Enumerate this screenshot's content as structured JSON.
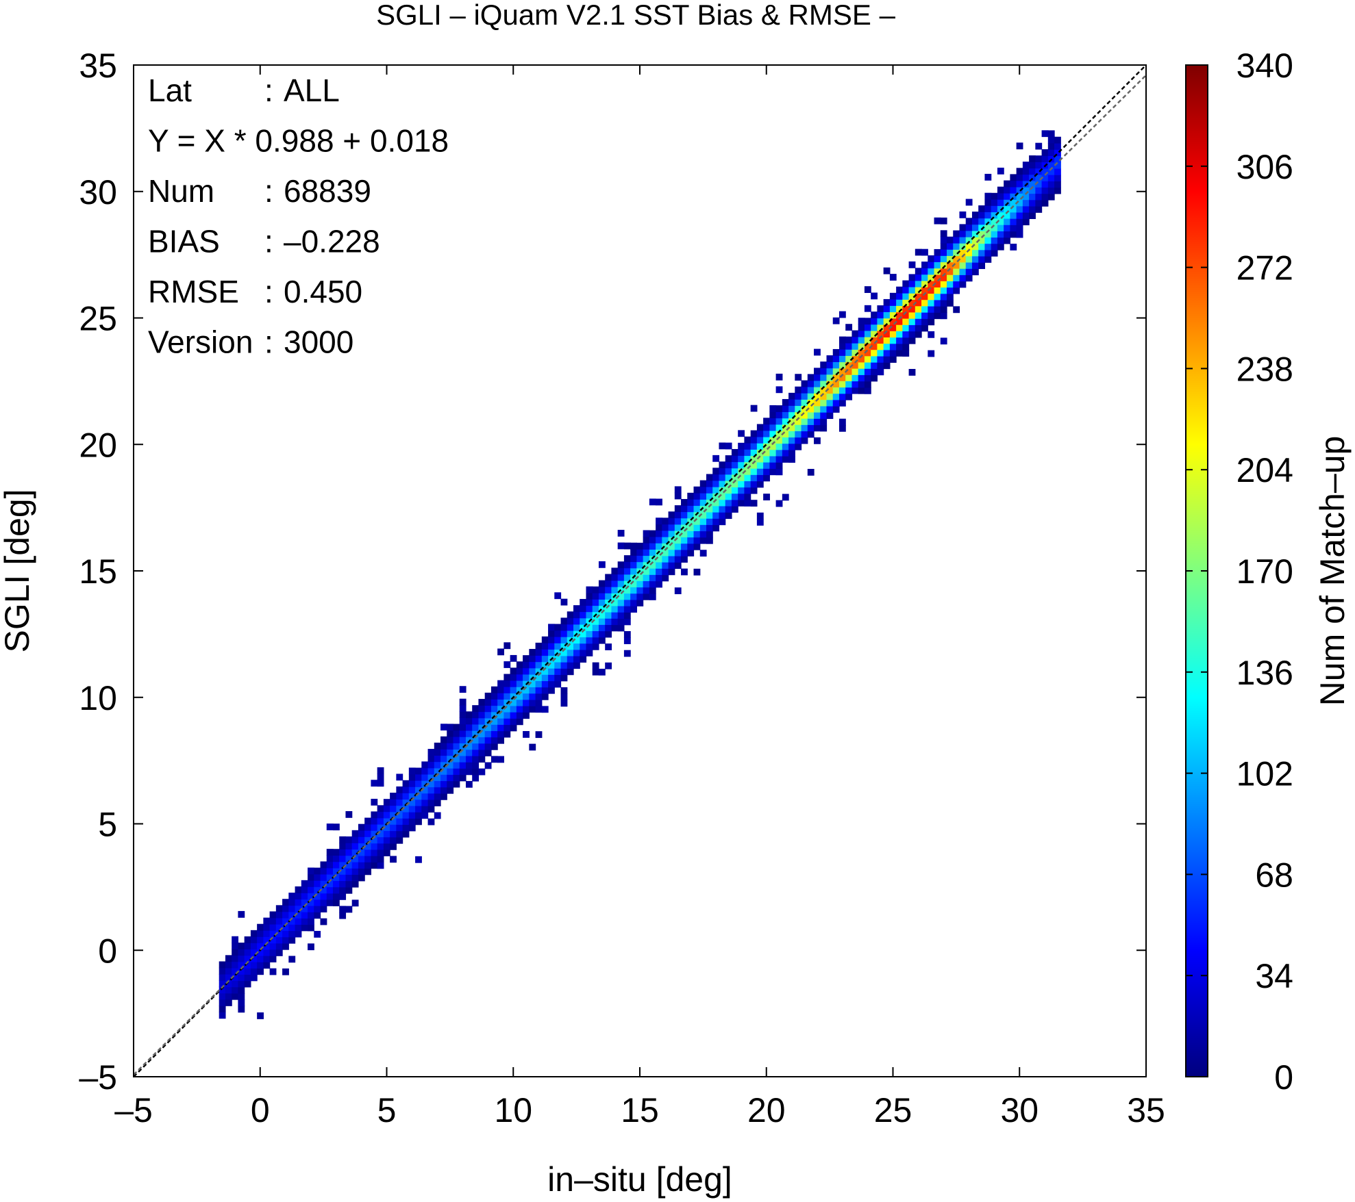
{
  "chart_data": {
    "type": "heatmap",
    "title": "SGLI – iQuam V2.1 SST Bias & RMSE  –",
    "xlabel": "in–situ [deg]",
    "ylabel": "SGLI [deg]",
    "xlim": [
      -5,
      35
    ],
    "ylim": [
      -5,
      35
    ],
    "x_ticks": [
      "–5",
      "0",
      "5",
      "10",
      "15",
      "20",
      "25",
      "30",
      "35"
    ],
    "y_ticks": [
      "–5",
      "0",
      "5",
      "10",
      "15",
      "20",
      "25",
      "30",
      "35"
    ],
    "grid": false,
    "colorbar": {
      "label": "Num of Match–up",
      "min": 0,
      "max": 340,
      "ticks": [
        "0",
        "34",
        "68",
        "102",
        "136",
        "170",
        "204",
        "238",
        "272",
        "306",
        "340"
      ]
    },
    "reference_lines": [
      {
        "name": "1:1",
        "slope": 1,
        "intercept": 0,
        "style": "dashed",
        "color": "#000000"
      },
      {
        "name": "regression",
        "slope": 0.988,
        "intercept": 0.018,
        "style": "dashed",
        "color": "#666666"
      }
    ],
    "stats": [
      {
        "key": "Lat",
        "sep": ":",
        "value": "ALL"
      },
      {
        "key": "Y = X * 0.988 + 0.018",
        "sep": "",
        "value": ""
      },
      {
        "key": "Num",
        "sep": ":",
        "value": "68839"
      },
      {
        "key": "BIAS",
        "sep": ":",
        "value": "–0.228"
      },
      {
        "key": "RMSE",
        "sep": ":",
        "value": "0.450"
      },
      {
        "key": "Version",
        "sep": ":",
        "value": "3000"
      }
    ],
    "density_profile": [
      {
        "x": -1.5,
        "peak": 30
      },
      {
        "x": 0,
        "peak": 45
      },
      {
        "x": 3,
        "peak": 60
      },
      {
        "x": 6,
        "peak": 75
      },
      {
        "x": 9,
        "peak": 95
      },
      {
        "x": 12,
        "peak": 125
      },
      {
        "x": 15,
        "peak": 150
      },
      {
        "x": 18,
        "peak": 160
      },
      {
        "x": 21,
        "peak": 200
      },
      {
        "x": 23,
        "peak": 260
      },
      {
        "x": 25,
        "peak": 300
      },
      {
        "x": 27,
        "peak": 290
      },
      {
        "x": 29,
        "peak": 150
      },
      {
        "x": 31,
        "peak": 60
      }
    ],
    "x_range_data": [
      -1.5,
      31.5
    ],
    "bias": -0.228,
    "rmse": 0.45
  },
  "colors": {
    "colormap": [
      "#00007f",
      "#0000ff",
      "#007fff",
      "#00ffff",
      "#7fff7f",
      "#ffff00",
      "#ff7f00",
      "#ff0000",
      "#7f0000"
    ]
  }
}
